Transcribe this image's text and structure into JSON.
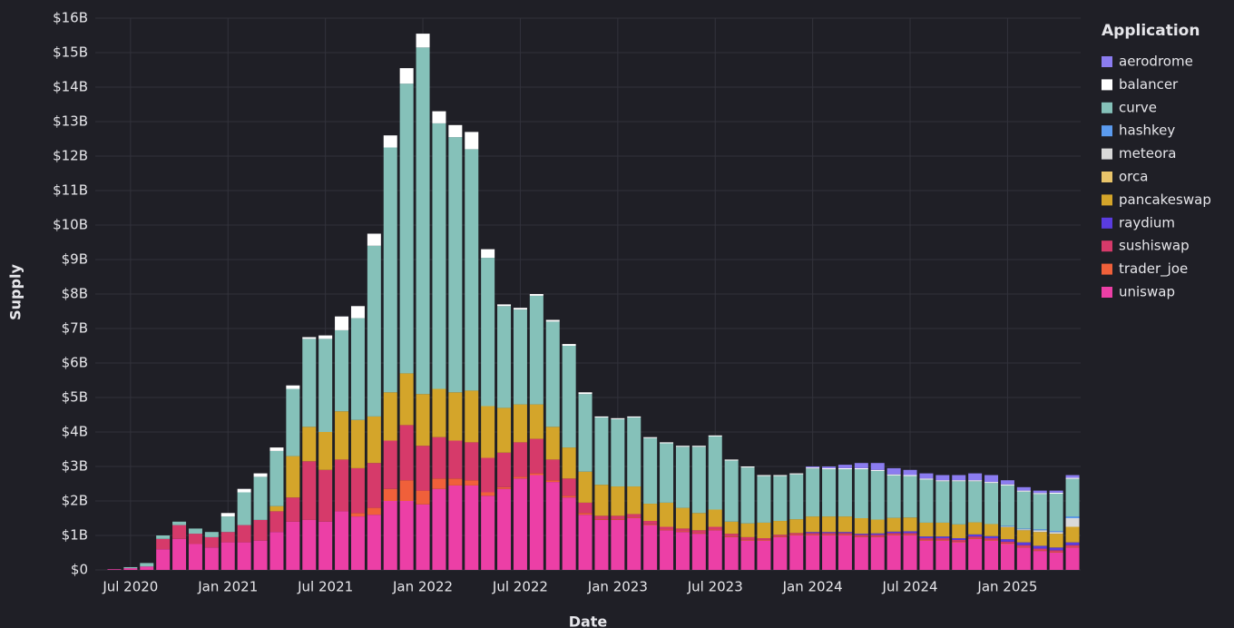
{
  "chart_data": {
    "type": "stacked_bar",
    "x_label": "Date",
    "y_label": "Supply",
    "legend_title": "Application",
    "legend": "right",
    "grid": true,
    "stacked": true,
    "categories": [
      null,
      "Jul 2020",
      null,
      null,
      null,
      null,
      null,
      "Jan 2021",
      null,
      null,
      null,
      null,
      null,
      "Jul 2021",
      null,
      null,
      null,
      null,
      null,
      "Jan 2022",
      null,
      null,
      null,
      null,
      null,
      "Jul 2022",
      null,
      null,
      null,
      null,
      null,
      "Jan 2023",
      null,
      null,
      null,
      null,
      null,
      "Jul 2023",
      null,
      null,
      null,
      null,
      null,
      "Jan 2024",
      null,
      null,
      null,
      null,
      null,
      "Jul 2024",
      null,
      null,
      null,
      null,
      null,
      "Jan 2025",
      null,
      null,
      null,
      null
    ],
    "ylim": [
      0,
      16
    ],
    "yticks": [
      {
        "value": 0,
        "label": "$0"
      },
      {
        "value": 1,
        "label": "$1B"
      },
      {
        "value": 2,
        "label": "$2B"
      },
      {
        "value": 3,
        "label": "$3B"
      },
      {
        "value": 4,
        "label": "$4B"
      },
      {
        "value": 5,
        "label": "$5B"
      },
      {
        "value": 6,
        "label": "$6B"
      },
      {
        "value": 7,
        "label": "$7B"
      },
      {
        "value": 8,
        "label": "$8B"
      },
      {
        "value": 9,
        "label": "$9B"
      },
      {
        "value": 10,
        "label": "$10B"
      },
      {
        "value": 11,
        "label": "$11B"
      },
      {
        "value": 12,
        "label": "$12B"
      },
      {
        "value": 13,
        "label": "$13B"
      },
      {
        "value": 14,
        "label": "$14B"
      },
      {
        "value": 15,
        "label": "$15B"
      },
      {
        "value": 16,
        "label": "$16B"
      }
    ],
    "series": [
      {
        "name": "aerodrome",
        "color": "#8b7cf0",
        "values": [
          0,
          0,
          0,
          0,
          0,
          0,
          0,
          0,
          0,
          0,
          0,
          0,
          0,
          0,
          0,
          0,
          0,
          0,
          0,
          0,
          0,
          0,
          0,
          0,
          0,
          0,
          0,
          0,
          0,
          0,
          0,
          0,
          0,
          0,
          0,
          0,
          0,
          0,
          0,
          0,
          0,
          0,
          0,
          0.03,
          0.05,
          0.1,
          0.15,
          0.2,
          0.18,
          0.15,
          0.15,
          0.15,
          0.15,
          0.2,
          0.2,
          0.12,
          0.1,
          0.07,
          0.06,
          0.08
        ]
      },
      {
        "name": "balancer",
        "color": "#ffffff",
        "values": [
          0,
          0,
          0,
          0,
          0,
          0,
          0,
          0.1,
          0.1,
          0.1,
          0.1,
          0.1,
          0.05,
          0.1,
          0.4,
          0.35,
          0.35,
          0.35,
          0.45,
          0.4,
          0.35,
          0.35,
          0.5,
          0.25,
          0.05,
          0.05,
          0.05,
          0.05,
          0.05,
          0.05,
          0.03,
          0.03,
          0.03,
          0.03,
          0.03,
          0.03,
          0.03,
          0.03,
          0.03,
          0.03,
          0.03,
          0.03,
          0.03,
          0.03,
          0.03,
          0.03,
          0.03,
          0.03,
          0.03,
          0.03,
          0.03,
          0.03,
          0.03,
          0.03,
          0.03,
          0.03,
          0.03,
          0.03,
          0.03,
          0.03
        ]
      },
      {
        "name": "curve",
        "color": "#85c1b9",
        "values": [
          0,
          0.03,
          0.1,
          0.1,
          0.1,
          0.15,
          0.15,
          0.45,
          0.95,
          1.25,
          1.6,
          1.95,
          2.55,
          2.7,
          2.35,
          2.95,
          4.95,
          7.1,
          8.4,
          10.05,
          7.7,
          7.4,
          7.0,
          4.3,
          2.95,
          2.75,
          3.15,
          3.05,
          2.95,
          2.25,
          1.95,
          1.95,
          2.0,
          1.9,
          1.72,
          1.77,
          1.92,
          2.12,
          1.77,
          1.62,
          1.35,
          1.3,
          1.3,
          1.39,
          1.37,
          1.37,
          1.42,
          1.41,
          1.23,
          1.2,
          1.25,
          1.2,
          1.25,
          1.19,
          1.19,
          1.17,
          1.07,
          1.02,
          1.08,
          1.09
        ]
      },
      {
        "name": "hashkey",
        "color": "#5b9bef",
        "values": [
          0,
          0,
          0,
          0,
          0,
          0,
          0,
          0,
          0,
          0,
          0,
          0,
          0,
          0,
          0,
          0,
          0,
          0,
          0,
          0,
          0,
          0,
          0,
          0,
          0,
          0,
          0,
          0,
          0,
          0,
          0,
          0,
          0,
          0,
          0,
          0,
          0,
          0,
          0,
          0,
          0,
          0,
          0,
          0,
          0,
          0,
          0,
          0,
          0,
          0,
          0,
          0,
          0,
          0,
          0,
          0.02,
          0.02,
          0.03,
          0.03,
          0.05
        ]
      },
      {
        "name": "meteora",
        "color": "#d9d9d9",
        "values": [
          0,
          0,
          0,
          0,
          0,
          0,
          0,
          0,
          0,
          0,
          0,
          0,
          0,
          0,
          0,
          0,
          0,
          0,
          0,
          0,
          0,
          0,
          0,
          0,
          0,
          0,
          0,
          0,
          0,
          0,
          0,
          0,
          0,
          0,
          0,
          0,
          0,
          0,
          0,
          0,
          0,
          0,
          0,
          0,
          0,
          0,
          0,
          0,
          0,
          0,
          0,
          0,
          0,
          0,
          0,
          0.02,
          0.03,
          0.05,
          0.05,
          0.25
        ]
      },
      {
        "name": "orca",
        "color": "#e9c46a",
        "values": [
          0,
          0,
          0,
          0,
          0,
          0,
          0,
          0,
          0,
          0,
          0,
          0,
          0,
          0,
          0,
          0,
          0,
          0,
          0,
          0,
          0,
          0,
          0,
          0,
          0,
          0,
          0,
          0,
          0,
          0,
          0,
          0,
          0,
          0,
          0,
          0,
          0,
          0,
          0,
          0,
          0,
          0,
          0,
          0,
          0,
          0,
          0,
          0,
          0,
          0,
          0,
          0,
          0,
          0,
          0,
          0,
          0,
          0,
          0,
          0
        ]
      },
      {
        "name": "pancakeswap",
        "color": "#d4a52a",
        "values": [
          0,
          0,
          0,
          0,
          0,
          0,
          0,
          0,
          0,
          0,
          0.15,
          1.2,
          1.0,
          1.1,
          1.4,
          1.4,
          1.35,
          1.4,
          1.5,
          1.5,
          1.4,
          1.4,
          1.5,
          1.5,
          1.3,
          1.1,
          1.0,
          0.95,
          0.9,
          0.9,
          0.9,
          0.85,
          0.8,
          0.5,
          0.7,
          0.6,
          0.5,
          0.5,
          0.35,
          0.4,
          0.45,
          0.4,
          0.4,
          0.45,
          0.45,
          0.45,
          0.45,
          0.4,
          0.4,
          0.4,
          0.4,
          0.4,
          0.4,
          0.35,
          0.35,
          0.35,
          0.35,
          0.4,
          0.4,
          0.45
        ]
      },
      {
        "name": "raydium",
        "color": "#5a3ce0",
        "values": [
          0,
          0,
          0,
          0,
          0,
          0,
          0,
          0,
          0,
          0,
          0,
          0,
          0,
          0,
          0,
          0,
          0,
          0,
          0,
          0,
          0,
          0,
          0,
          0,
          0,
          0,
          0,
          0,
          0,
          0,
          0,
          0,
          0,
          0,
          0,
          0,
          0,
          0,
          0,
          0,
          0,
          0,
          0,
          0.03,
          0.03,
          0.03,
          0.03,
          0.04,
          0.04,
          0.05,
          0.05,
          0.05,
          0.05,
          0.06,
          0.06,
          0.07,
          0.08,
          0.08,
          0.08,
          0.08
        ]
      },
      {
        "name": "sushiswap",
        "color": "#d63a6a",
        "values": [
          0,
          0,
          0,
          0.3,
          0.4,
          0.3,
          0.3,
          0.3,
          0.5,
          0.6,
          0.6,
          0.7,
          1.7,
          1.5,
          1.5,
          1.3,
          1.3,
          1.4,
          1.6,
          1.3,
          1.2,
          1.1,
          1.1,
          1.0,
          1.0,
          1.0,
          1.0,
          0.6,
          0.5,
          0.3,
          0.1,
          0.1,
          0.1,
          0.1,
          0.08,
          0.08,
          0.08,
          0.08,
          0.08,
          0.08,
          0.05,
          0.05,
          0.05,
          0.05,
          0.05,
          0.05,
          0.05,
          0.05,
          0.05,
          0.05,
          0.05,
          0.05,
          0.05,
          0.05,
          0.05,
          0.05,
          0.05,
          0.05,
          0.05,
          0.05
        ]
      },
      {
        "name": "trader_joe",
        "color": "#f0603a",
        "values": [
          0,
          0,
          0,
          0,
          0,
          0,
          0,
          0,
          0,
          0,
          0,
          0,
          0,
          0,
          0,
          0.1,
          0.2,
          0.35,
          0.6,
          0.4,
          0.3,
          0.2,
          0.15,
          0.1,
          0.05,
          0.05,
          0.05,
          0.05,
          0.05,
          0.05,
          0.02,
          0.02,
          0.02,
          0.02,
          0.02,
          0.02,
          0.02,
          0.02,
          0.02,
          0.02,
          0.02,
          0.02,
          0.02,
          0.02,
          0.02,
          0.02,
          0.02,
          0.02,
          0.02,
          0.02,
          0.02,
          0.02,
          0.02,
          0.02,
          0.02,
          0.02,
          0.02,
          0.02,
          0.02,
          0.02
        ]
      },
      {
        "name": "uniswap",
        "color": "#ec3fa6",
        "values": [
          0.02,
          0.05,
          0.1,
          0.6,
          0.9,
          0.75,
          0.65,
          0.8,
          0.8,
          0.85,
          1.1,
          1.4,
          1.45,
          1.4,
          1.7,
          1.55,
          1.6,
          2.0,
          2.0,
          1.9,
          2.35,
          2.45,
          2.45,
          2.15,
          2.35,
          2.65,
          2.75,
          2.55,
          2.1,
          1.6,
          1.45,
          1.45,
          1.5,
          1.3,
          1.15,
          1.1,
          1.05,
          1.15,
          0.95,
          0.85,
          0.85,
          0.95,
          1.0,
          1.0,
          1.0,
          1.0,
          0.95,
          0.95,
          1.0,
          1.0,
          0.85,
          0.85,
          0.8,
          0.9,
          0.85,
          0.75,
          0.65,
          0.55,
          0.5,
          0.65
        ]
      }
    ]
  }
}
